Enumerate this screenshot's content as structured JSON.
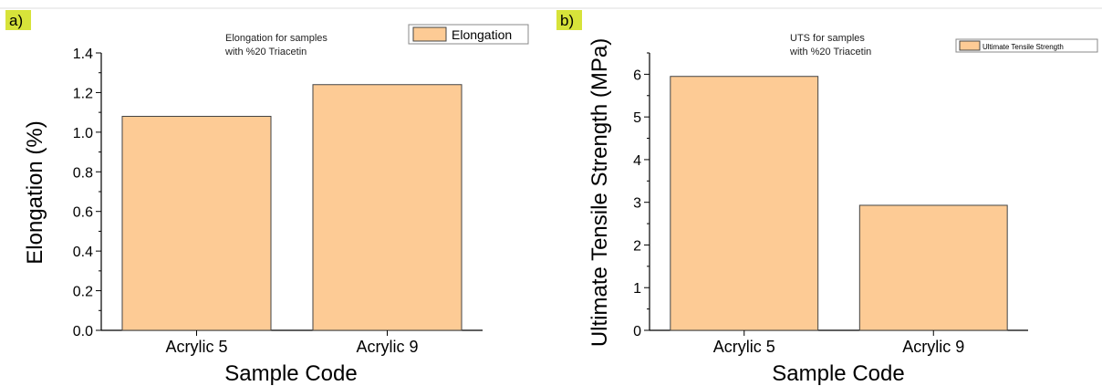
{
  "colors": {
    "bar_fill": "#fdcb95",
    "bar_stroke": "#444444",
    "axis": "#000000",
    "panel_tag_bg": "#d7e33a",
    "top_rule": "#dddddd"
  },
  "chart_data": [
    {
      "type": "bar",
      "panel_label": "a)",
      "title_lines": [
        "Elongation for samples",
        "with %20 Triacetin"
      ],
      "legend": [
        "Elongation"
      ],
      "legend_position": "top-right",
      "xlabel": "Sample Code",
      "ylabel": "Elongation (%)",
      "categories": [
        "Acrylic 5",
        "Acrylic 9"
      ],
      "series": [
        {
          "name": "Elongation",
          "values": [
            1.08,
            1.24
          ]
        }
      ],
      "ylim": [
        0,
        1.4
      ],
      "yticks": [
        0.0,
        0.2,
        0.4,
        0.6,
        0.8,
        1.0,
        1.2,
        1.4
      ],
      "ytick_labels": [
        "0.0",
        "0.2",
        "0.4",
        "0.6",
        "0.8",
        "1.0",
        "1.2",
        "1.4"
      ],
      "grid": false
    },
    {
      "type": "bar",
      "panel_label": "b)",
      "title_lines": [
        "UTS for samples",
        "with %20 Triacetin"
      ],
      "legend": [
        "Ultimate Tensile Strength"
      ],
      "legend_position": "top-right",
      "xlabel": "Sample Code",
      "ylabel": "Ultimate Tensile Strength (MPa)",
      "categories": [
        "Acrylic 5",
        "Acrylic 9"
      ],
      "series": [
        {
          "name": "Ultimate Tensile Strength",
          "values": [
            5.95,
            2.93
          ]
        }
      ],
      "ylim": [
        0,
        6.5
      ],
      "yticks": [
        0,
        1,
        2,
        3,
        4,
        5,
        6
      ],
      "ytick_labels": [
        "0",
        "1",
        "2",
        "3",
        "4",
        "5",
        "6"
      ],
      "grid": false
    }
  ]
}
